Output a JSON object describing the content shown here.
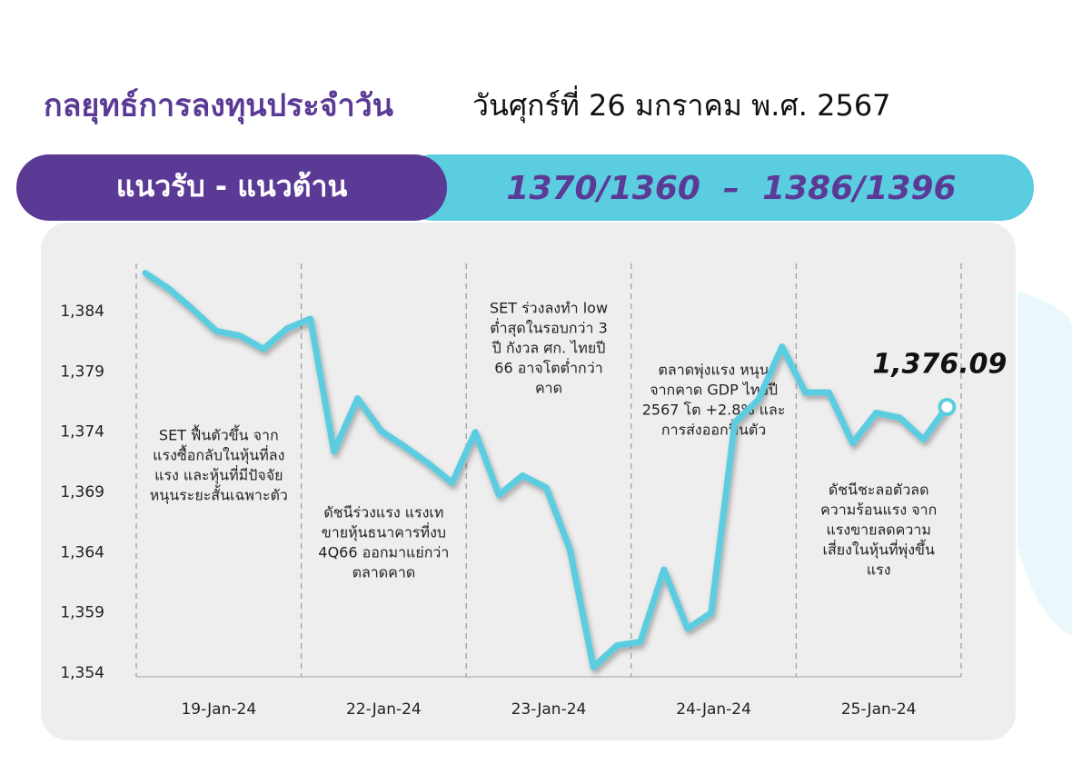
{
  "header": {
    "title": "กลยุทธ์การลงทุนประจำวัน",
    "date": "วันศุกร์ที่ 26 มกราคม พ.ศ. 2567"
  },
  "banner": {
    "label": "แนวรับ - แนวต้าน",
    "levels": "1370/1360  –  1386/1396"
  },
  "chart_data": {
    "type": "line",
    "color": "#5bcde0",
    "ylim": [
      1353.7,
      1388
    ],
    "yticks": [
      {
        "value": 1354,
        "label": "1,354"
      },
      {
        "value": 1359,
        "label": "1,359"
      },
      {
        "value": 1364,
        "label": "1,364"
      },
      {
        "value": 1369,
        "label": "1,369"
      },
      {
        "value": 1374,
        "label": "1,374"
      },
      {
        "value": 1379,
        "label": "1,379"
      },
      {
        "value": 1384,
        "label": "1,384"
      }
    ],
    "days": [
      {
        "label": "19-Jan-24",
        "values": [
          1387.2,
          1385.9,
          1384.2,
          1382.4,
          1382.0,
          1380.9,
          1382.6
        ],
        "note": [
          "SET ฟื้นตัวขึ้น จาก",
          "แรงซื้อกลับในหุ้นที่ลง",
          "แรง และหุ้นที่มีปัจจัย",
          "หนุนระยะสั้นเฉพาะตัว"
        ]
      },
      {
        "label": "22-Jan-24",
        "values": [
          1383.4,
          1372.4,
          1376.8,
          1374.1,
          1372.8,
          1371.4,
          1369.8
        ],
        "note": [
          "ดัชนีร่วงแรง แรงเท",
          "ขายหุ้นธนาคารที่งบ",
          "4Q66 ออกมาแย่กว่า",
          "ตลาดคาด"
        ]
      },
      {
        "label": "23-Jan-24",
        "values": [
          1374.0,
          1368.8,
          1370.4,
          1369.4,
          1364.3,
          1354.5,
          1356.3
        ],
        "note": [
          "SET ร่วงลงทำ low",
          "ต่ำสุดในรอบกว่า 3",
          "ปี กังวล ศก. ไทยปี",
          "66 อาจโตต่ำกว่า",
          "คาด"
        ]
      },
      {
        "label": "24-Jan-24",
        "values": [
          1356.6,
          1362.6,
          1357.7,
          1359.0,
          1374.8,
          1376.7,
          1381.1
        ],
        "note": [
          "ตลาดพุ่งแรง หนุน",
          "จากคาด GDP ไทยปี",
          "2567 โต +2.8% และ",
          "การส่งออกฟื้นตัว"
        ]
      },
      {
        "label": "25-Jan-24",
        "values": [
          1377.3,
          1377.3,
          1373.1,
          1375.6,
          1375.2,
          1373.4,
          1376.09
        ],
        "value_labels": [
          null,
          null,
          null,
          null,
          null,
          null,
          "1,376.09"
        ],
        "note": [
          "ดัชนีชะลอตัวลด",
          "ความร้อนแรง จาก",
          "แรงขายลดความ",
          "เสี่ยงในหุ้นที่พุ่งขึ้น",
          "แรง"
        ]
      }
    ]
  }
}
